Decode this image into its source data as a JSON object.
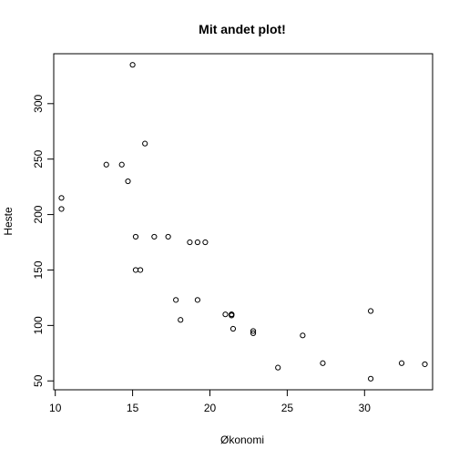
{
  "chart_data": {
    "type": "scatter",
    "title": "Mit andet plot!",
    "xlabel": "Økonomi",
    "ylabel": "Heste",
    "xlim": [
      9.9,
      34.4
    ],
    "ylim": [
      42,
      345
    ],
    "xticks": [
      10,
      15,
      20,
      25,
      30
    ],
    "yticks": [
      50,
      100,
      150,
      200,
      250,
      300
    ],
    "grid": false,
    "marker": "open-circle",
    "x": [
      21.0,
      21.4,
      22.8,
      21.4,
      18.7,
      18.1,
      14.3,
      24.4,
      22.8,
      19.2,
      17.8,
      16.4,
      17.3,
      15.2,
      10.4,
      10.4,
      14.7,
      32.4,
      30.4,
      33.9,
      21.5,
      15.5,
      15.2,
      13.3,
      19.2,
      27.3,
      26.0,
      30.4,
      15.8,
      19.7,
      15.0,
      21.4
    ],
    "y": [
      110,
      110,
      93,
      110,
      175,
      105,
      245,
      62,
      95,
      123,
      123,
      180,
      180,
      180,
      205,
      215,
      230,
      66,
      52,
      65,
      97,
      150,
      150,
      245,
      175,
      66,
      91,
      113,
      264,
      175,
      335,
      109
    ]
  }
}
